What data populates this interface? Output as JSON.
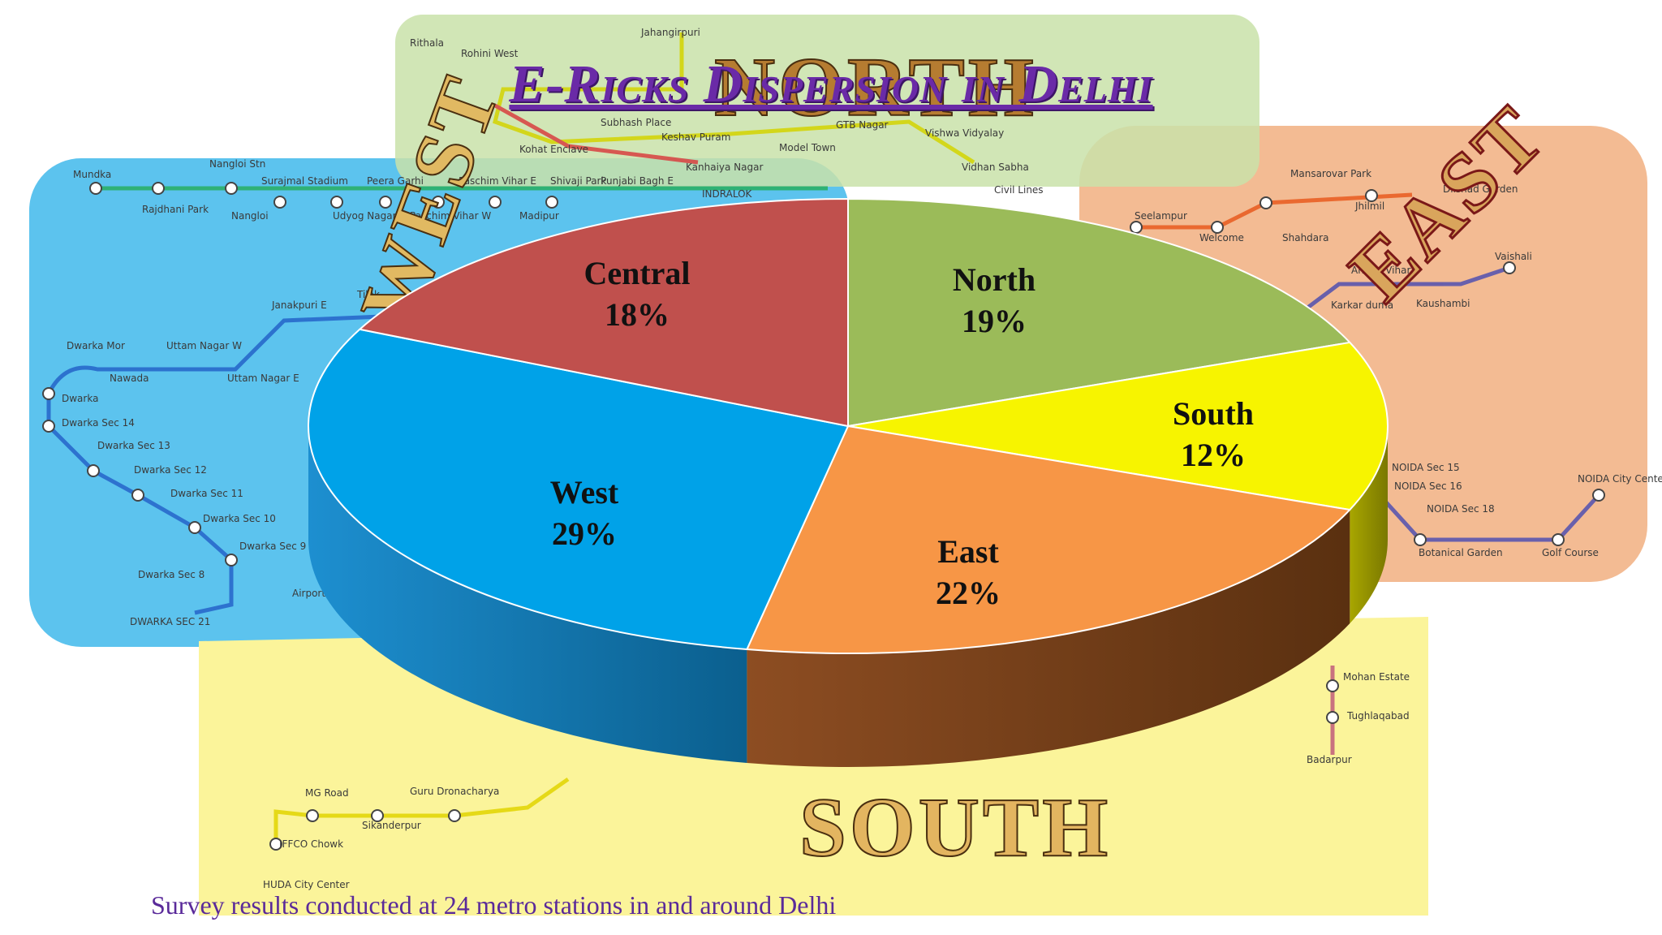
{
  "slide": {
    "title": "E-Ricks Dispersion in Delhi",
    "footnote": "Survey results conducted at 24 metro stations in and around Delhi"
  },
  "background_regions": {
    "north": "NORTH",
    "south": "SOUTH",
    "east": "EAST",
    "west": "WEST"
  },
  "metro_stations": {
    "north": [
      "Jahangirpuri",
      "Rithala",
      "Rohini West",
      "Kohat Enclave",
      "Subhash Place",
      "Keshav Puram",
      "Kanhaiya Nagar",
      "GTB Nagar",
      "Vishwa Vidyalay",
      "Model Town",
      "Vidhan Sabha",
      "Civil Lines"
    ],
    "west": [
      "Mundka",
      "Nangloi Stn",
      "Surajmal Stadium",
      "Peera Garhi",
      "Paschim Vihar E",
      "Shivaji Park",
      "Punjabi Bagh E",
      "INDRALOK",
      "Rajdhani Park",
      "Nangloi",
      "Udyog Nagar",
      "Paschim Vihar W",
      "Madipur",
      "Janakpuri E",
      "Tilak",
      "Dwarka Mor",
      "Uttam Nagar W",
      "Nawada",
      "Uttam Nagar E",
      "Dwarka",
      "Dwarka Sec 14",
      "Dwarka Sec 13",
      "Dwarka Sec 12",
      "Dwarka Sec 11",
      "Dwarka Sec 10",
      "Dwarka Sec 9",
      "Dwarka Sec 8",
      "DWARKA SEC 21",
      "Airport"
    ],
    "east": [
      "Mansarovar Park",
      "Jhilmil",
      "Dilshad Garden",
      "Seelampur",
      "Welcome",
      "Shahdara",
      "Anand Vihar",
      "Karkar duma",
      "Kaushambi",
      "Vaishali",
      "NOIDA Sec 15",
      "NOIDA Sec 16",
      "NOIDA Sec 18",
      "NOIDA City Center",
      "Botanical Garden",
      "Golf Course"
    ],
    "south": [
      "MG Road",
      "Guru Dronacharya",
      "Sikanderpur",
      "IFFCO Chowk",
      "HUDA City Center",
      "Mohan Estate",
      "Tughlaqabad",
      "Badarpur"
    ]
  },
  "colors": {
    "north_slice": "#9bbb59",
    "south_slice": "#f7f400",
    "east_slice": "#f79646",
    "west_slice": "#00a2e8",
    "central_slice": "#c0504d",
    "title": "#6a2aa7"
  },
  "chart_data": {
    "type": "pie",
    "style": "3d",
    "title": "",
    "slices": [
      {
        "label": "North",
        "value": 19,
        "display": "19%"
      },
      {
        "label": "South",
        "value": 12,
        "display": "12%"
      },
      {
        "label": "East",
        "value": 22,
        "display": "22%"
      },
      {
        "label": "West",
        "value": 29,
        "display": "29%"
      },
      {
        "label": "Central",
        "value": 18,
        "display": "18%"
      }
    ],
    "start": "12 o'clock",
    "direction": "clockwise",
    "legend": "none"
  }
}
